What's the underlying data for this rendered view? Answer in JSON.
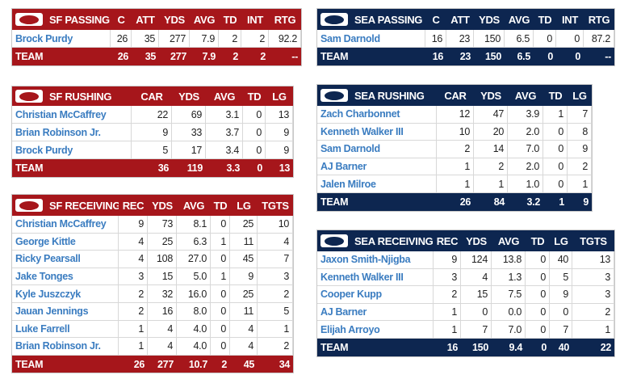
{
  "tables": [
    {
      "title": "SF PASSING",
      "color": "#a6161b",
      "columns": [
        "C",
        "ATT",
        "YDS",
        "AVG",
        "TD",
        "INT",
        "RTG"
      ],
      "rows": [
        [
          "Brock Purdy",
          "26",
          "35",
          "277",
          "7.9",
          "2",
          "2",
          "92.2"
        ]
      ],
      "total": [
        "TEAM",
        "26",
        "35",
        "277",
        "7.9",
        "2",
        "2",
        "--"
      ]
    },
    {
      "title": "SEA PASSING",
      "color": "#0d2650",
      "columns": [
        "C",
        "ATT",
        "YDS",
        "AVG",
        "TD",
        "INT",
        "RTG"
      ],
      "rows": [
        [
          "Sam Darnold",
          "16",
          "23",
          "150",
          "6.5",
          "0",
          "0",
          "87.2"
        ]
      ],
      "total": [
        "TEAM",
        "16",
        "23",
        "150",
        "6.5",
        "0",
        "0",
        "--"
      ]
    },
    {
      "title": "SF RUSHING",
      "color": "#a6161b",
      "columns": [
        "CAR",
        "YDS",
        "AVG",
        "TD",
        "LG"
      ],
      "rows": [
        [
          "Christian McCaffrey",
          "22",
          "69",
          "3.1",
          "0",
          "13"
        ],
        [
          "Brian Robinson Jr.",
          "9",
          "33",
          "3.7",
          "0",
          "9"
        ],
        [
          "Brock Purdy",
          "5",
          "17",
          "3.4",
          "0",
          "9"
        ]
      ],
      "total": [
        "TEAM",
        "36",
        "119",
        "3.3",
        "0",
        "13"
      ]
    },
    {
      "title": "SEA RUSHING",
      "color": "#0d2650",
      "columns": [
        "CAR",
        "YDS",
        "AVG",
        "TD",
        "LG"
      ],
      "rows": [
        [
          "Zach Charbonnet",
          "12",
          "47",
          "3.9",
          "1",
          "7"
        ],
        [
          "Kenneth Walker III",
          "10",
          "20",
          "2.0",
          "0",
          "8"
        ],
        [
          "Sam Darnold",
          "2",
          "14",
          "7.0",
          "0",
          "9"
        ],
        [
          "AJ Barner",
          "1",
          "2",
          "2.0",
          "0",
          "2"
        ],
        [
          "Jalen Milroe",
          "1",
          "1",
          "1.0",
          "0",
          "1"
        ]
      ],
      "total": [
        "TEAM",
        "26",
        "84",
        "3.2",
        "1",
        "9"
      ]
    },
    {
      "title": "SF RECEIVING",
      "color": "#a6161b",
      "columns": [
        "REC",
        "YDS",
        "AVG",
        "TD",
        "LG",
        "TGTS"
      ],
      "rows": [
        [
          "Christian McCaffrey",
          "9",
          "73",
          "8.1",
          "0",
          "25",
          "10"
        ],
        [
          "George Kittle",
          "4",
          "25",
          "6.3",
          "1",
          "11",
          "4"
        ],
        [
          "Ricky Pearsall",
          "4",
          "108",
          "27.0",
          "0",
          "45",
          "7"
        ],
        [
          "Jake Tonges",
          "3",
          "15",
          "5.0",
          "1",
          "9",
          "3"
        ],
        [
          "Kyle Juszczyk",
          "2",
          "32",
          "16.0",
          "0",
          "25",
          "2"
        ],
        [
          "Jauan Jennings",
          "2",
          "16",
          "8.0",
          "0",
          "11",
          "5"
        ],
        [
          "Luke Farrell",
          "1",
          "4",
          "4.0",
          "0",
          "4",
          "1"
        ],
        [
          "Brian Robinson Jr.",
          "1",
          "4",
          "4.0",
          "0",
          "4",
          "2"
        ]
      ],
      "total": [
        "TEAM",
        "26",
        "277",
        "10.7",
        "2",
        "45",
        "34"
      ]
    },
    {
      "title": "SEA RECEIVING",
      "color": "#0d2650",
      "columns": [
        "REC",
        "YDS",
        "AVG",
        "TD",
        "LG",
        "TGTS"
      ],
      "rows": [
        [
          "Jaxon Smith-Njigba",
          "9",
          "124",
          "13.8",
          "0",
          "40",
          "13"
        ],
        [
          "Kenneth Walker III",
          "3",
          "4",
          "1.3",
          "0",
          "5",
          "3"
        ],
        [
          "Cooper Kupp",
          "2",
          "15",
          "7.5",
          "0",
          "9",
          "3"
        ],
        [
          "AJ Barner",
          "1",
          "0",
          "0.0",
          "0",
          "0",
          "2"
        ],
        [
          "Elijah Arroyo",
          "1",
          "7",
          "7.0",
          "0",
          "7",
          "1"
        ]
      ],
      "total": [
        "TEAM",
        "16",
        "150",
        "9.4",
        "0",
        "40",
        "22"
      ]
    }
  ]
}
